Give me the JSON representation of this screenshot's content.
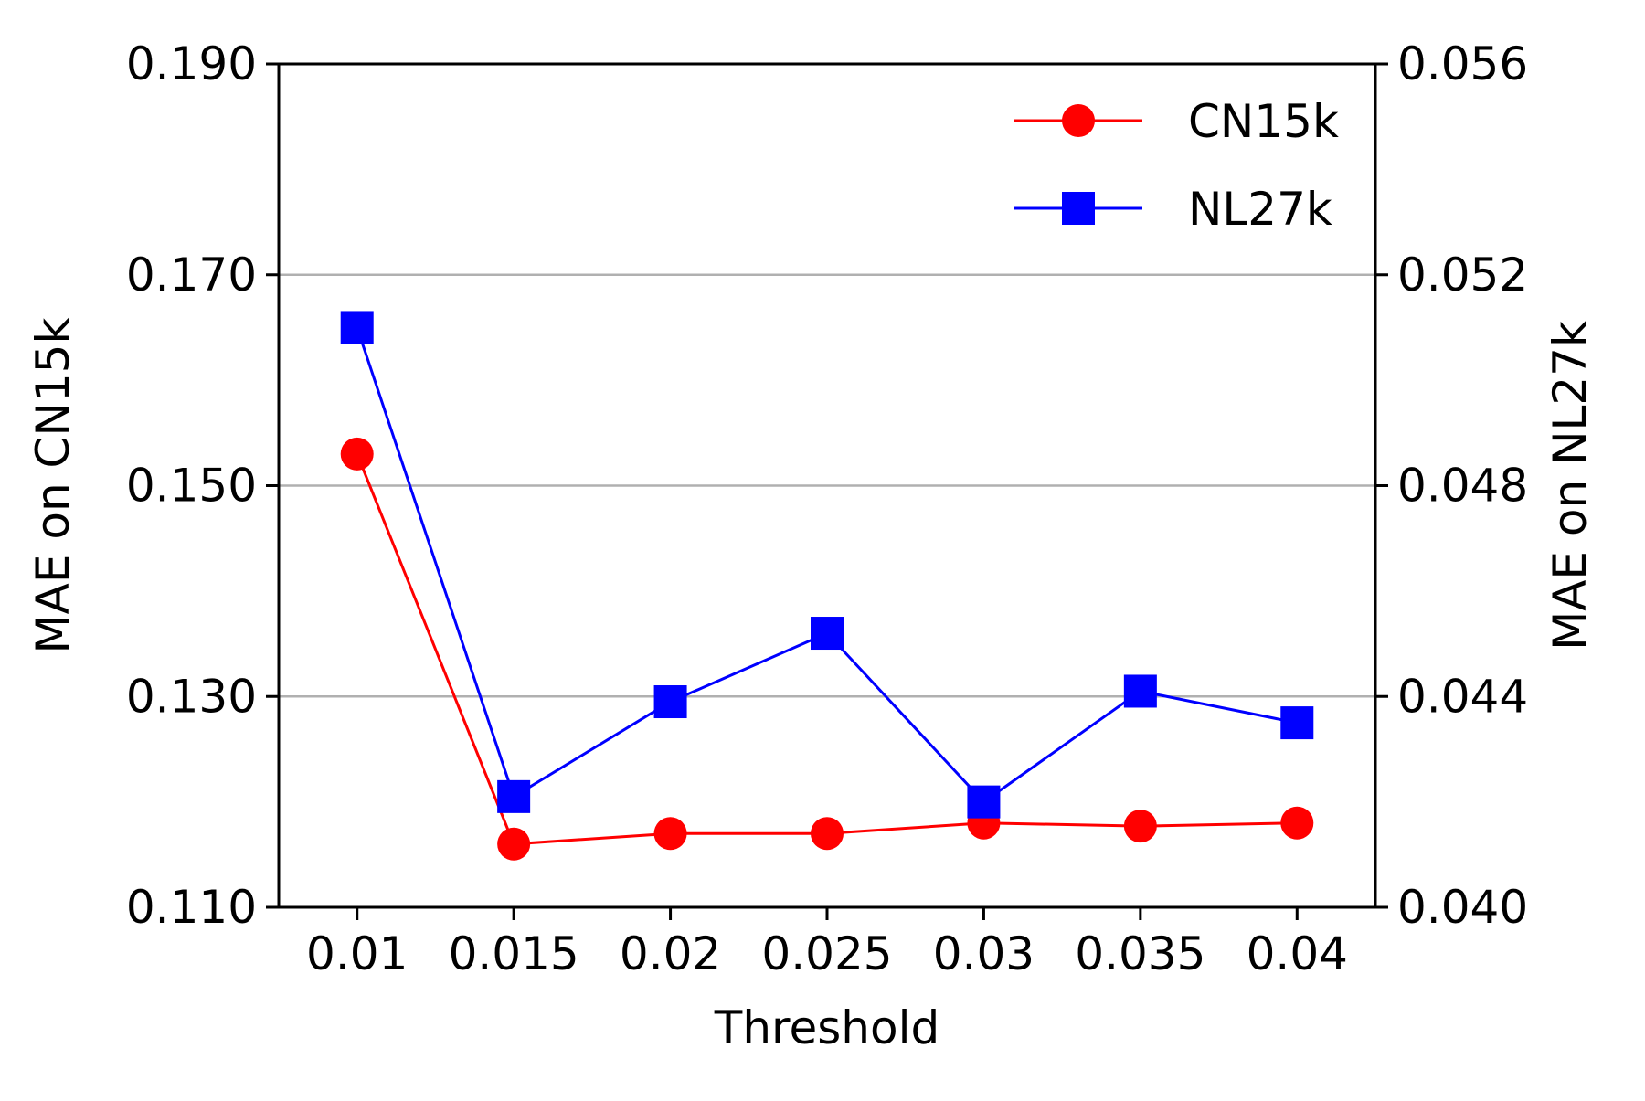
{
  "chart_data": {
    "type": "line",
    "xlabel": "Threshold",
    "ylabel_left": "MAE on CN15k",
    "ylabel_right": "MAE on NL27k",
    "categories": [
      "0.01",
      "0.015",
      "0.02",
      "0.025",
      "0.03",
      "0.035",
      "0.04"
    ],
    "y_left": {
      "lim": [
        0.11,
        0.19
      ],
      "ticks": [
        0.11,
        0.13,
        0.15,
        0.17,
        0.19
      ],
      "tick_labels": [
        "0.110",
        "0.130",
        "0.150",
        "0.170",
        "0.190"
      ]
    },
    "y_right": {
      "lim": [
        0.04,
        0.056
      ],
      "ticks": [
        0.04,
        0.044,
        0.048,
        0.052,
        0.056
      ],
      "tick_labels": [
        "0.040",
        "0.044",
        "0.048",
        "0.052",
        "0.056"
      ]
    },
    "grid": "horizontal",
    "legend_position": "top-right",
    "series": [
      {
        "name": "CN15k",
        "axis": "left",
        "color": "#ff0000",
        "marker": "circle",
        "values": [
          0.153,
          0.116,
          0.117,
          0.117,
          0.118,
          0.1177,
          0.118
        ]
      },
      {
        "name": "NL27k",
        "axis": "right",
        "color": "#0000ff",
        "marker": "square",
        "values": [
          0.051,
          0.0421,
          0.0439,
          0.0452,
          0.042,
          0.0441,
          0.0435
        ]
      }
    ]
  }
}
